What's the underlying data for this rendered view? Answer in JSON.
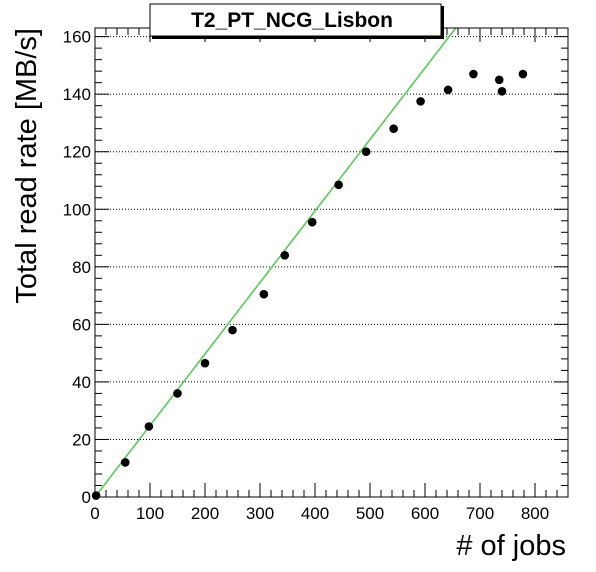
{
  "chart_data": {
    "type": "scatter",
    "title": "T2_PT_NCG_Lisbon",
    "xlabel": "# of jobs",
    "ylabel": "Total read rate [MB/s]",
    "xlim": [
      0,
      860
    ],
    "ylim": [
      0,
      163
    ],
    "x_ticks": [
      0,
      100,
      200,
      300,
      400,
      500,
      600,
      700,
      800
    ],
    "y_ticks": [
      0,
      20,
      40,
      60,
      80,
      100,
      120,
      140,
      160
    ],
    "grid": "horizontal-dotted",
    "points": [
      {
        "x": 2,
        "y": 0.5
      },
      {
        "x": 55,
        "y": 12
      },
      {
        "x": 98,
        "y": 24.5
      },
      {
        "x": 150,
        "y": 36
      },
      {
        "x": 200,
        "y": 46.5
      },
      {
        "x": 250,
        "y": 58
      },
      {
        "x": 307,
        "y": 70.5
      },
      {
        "x": 345,
        "y": 84
      },
      {
        "x": 395,
        "y": 95.5
      },
      {
        "x": 443,
        "y": 108.5
      },
      {
        "x": 493,
        "y": 120
      },
      {
        "x": 543,
        "y": 128
      },
      {
        "x": 592,
        "y": 137.5
      },
      {
        "x": 642,
        "y": 141.5
      },
      {
        "x": 688,
        "y": 147
      },
      {
        "x": 735,
        "y": 145
      },
      {
        "x": 740,
        "y": 141
      },
      {
        "x": 778,
        "y": 147
      }
    ],
    "fit_line": {
      "slope": 0.2485,
      "intercept": 0,
      "color": "#55cc55"
    },
    "marker_color": "#000000"
  }
}
